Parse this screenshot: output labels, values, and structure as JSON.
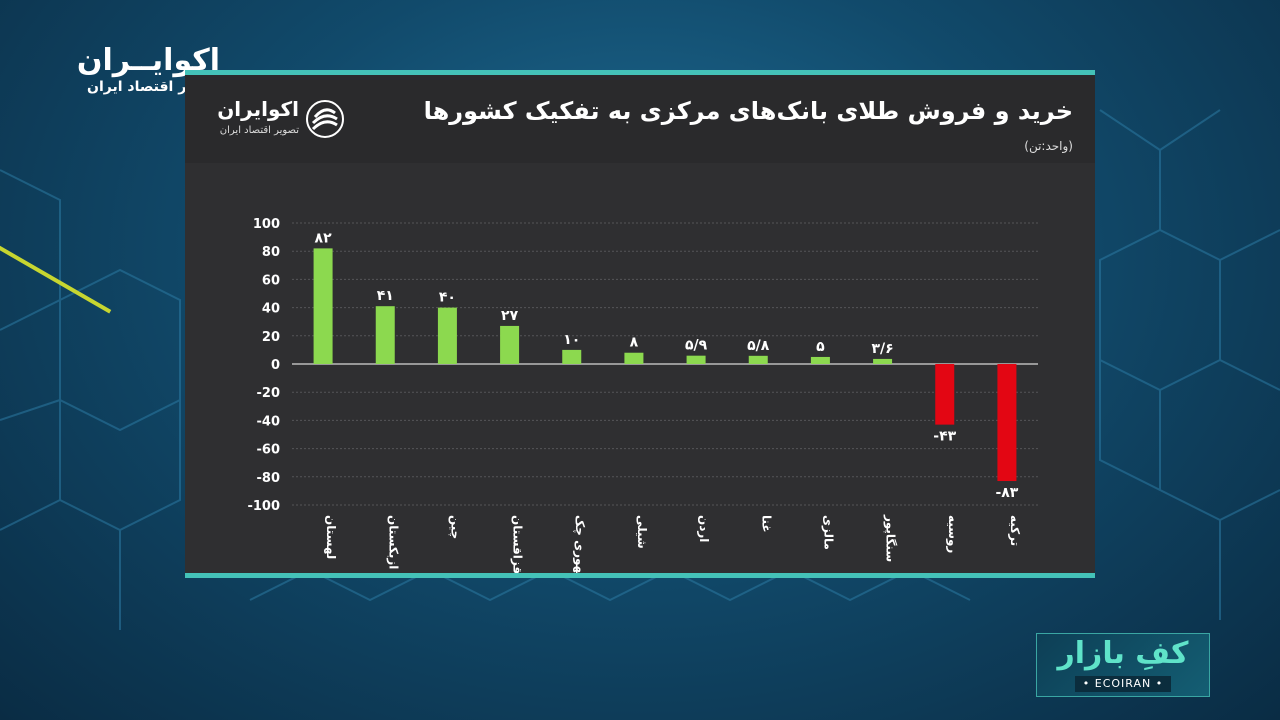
{
  "brand": {
    "name": "اکوایــران",
    "tagline": "تصویر اقتصاد ایران"
  },
  "panel": {
    "title": "خرید و فروش طلای بانک‌های مرکزی به تفکیک کشورها",
    "unit": "(واحد:تن)",
    "logo_name": "اکوایران",
    "logo_tagline": "تصویر اقتصاد ایران"
  },
  "chart_data": {
    "type": "bar",
    "categories": [
      "لهستان",
      "ازبکستان",
      "چین",
      "قزاقستان",
      "جمهوری چک",
      "شیلی",
      "اردن",
      "غنا",
      "مالزی",
      "سنگاپور",
      "روسیه",
      "ترکیه"
    ],
    "values": [
      82,
      41,
      40,
      27,
      10,
      8,
      5.9,
      5.8,
      5,
      3.6,
      -43,
      -83
    ],
    "value_labels": [
      "۸۲",
      "۴۱",
      "۴۰",
      "۲۷",
      "۱۰",
      "۸",
      "۵/۹",
      "۵/۸",
      "۵",
      "۳/۶",
      "-۴۳",
      "-۸۳"
    ],
    "y_ticks": [
      100,
      80,
      60,
      40,
      20,
      0,
      -20,
      -40,
      -60,
      -80,
      -100
    ],
    "ylim": [
      -100,
      100
    ],
    "grid": true,
    "colors": {
      "positive": "#8cd94f",
      "negative": "#e30613"
    }
  },
  "badge": {
    "name": "کفِ بازار",
    "caption": "• ECOIRAN •"
  }
}
